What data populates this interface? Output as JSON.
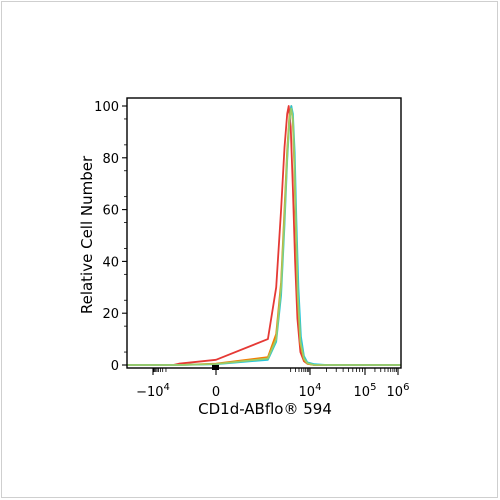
{
  "chart_data": {
    "type": "line",
    "xlabel": "CD1d-ABflo® 594",
    "ylabel": "Relative Cell Number",
    "ylim": [
      0,
      100
    ],
    "y_ticks": [
      "0",
      "20",
      "40",
      "60",
      "80",
      "100"
    ],
    "x_scale": "biexponential",
    "x_ticks": [
      {
        "value": -10000,
        "base": "−10",
        "exp": "4"
      },
      {
        "value": 0,
        "base": "0",
        "exp": ""
      },
      {
        "value": 10000,
        "base": "10",
        "exp": "4"
      },
      {
        "value": 100000,
        "base": "10",
        "exp": "5"
      },
      {
        "value": 1000000,
        "base": "10",
        "exp": "6"
      }
    ],
    "grid": false,
    "series": [
      {
        "color": "#e53935",
        "x": [
          -10000,
          -6000,
          -3000,
          -1500,
          -800,
          -400,
          0,
          300,
          600,
          900,
          1200,
          1500,
          1700,
          2000,
          2400,
          2900,
          3500,
          4500,
          6000,
          8000,
          12000,
          20000,
          40000
        ],
        "y": [
          0,
          0,
          0,
          0,
          0,
          0.5,
          2,
          10,
          30,
          60,
          84,
          97,
          100,
          92,
          68,
          40,
          18,
          5,
          1.5,
          0.5,
          0,
          0,
          0
        ]
      },
      {
        "color": "#f57c00",
        "x": [
          -10000,
          -6000,
          -3000,
          -1500,
          -800,
          -400,
          0,
          300,
          600,
          900,
          1200,
          1500,
          1800,
          2100,
          2400,
          2700,
          3100,
          3600,
          4500,
          6000,
          8000,
          12000,
          20000,
          40000
        ],
        "y": [
          0,
          0,
          0,
          0,
          0,
          0,
          0.5,
          3,
          12,
          32,
          60,
          83,
          96,
          100,
          94,
          78,
          52,
          26,
          8,
          2,
          0.5,
          0,
          0,
          0
        ]
      },
      {
        "color": "#26c6da",
        "x": [
          -10000,
          -6000,
          -3000,
          -1500,
          -800,
          -400,
          0,
          300,
          600,
          900,
          1200,
          1500,
          1800,
          2100,
          2400,
          2800,
          3200,
          3800,
          4700,
          6000,
          8000,
          12000,
          20000,
          40000
        ],
        "y": [
          0,
          0,
          0,
          0,
          0,
          0,
          0.3,
          2,
          9,
          27,
          54,
          79,
          94,
          100,
          97,
          82,
          57,
          30,
          11,
          3.5,
          1,
          0.3,
          0,
          0
        ]
      },
      {
        "color": "#9ccc65",
        "x": [
          -10000,
          -6000,
          -3000,
          -1500,
          -800,
          -400,
          0,
          300,
          600,
          900,
          1200,
          1500,
          1800,
          2100,
          2400,
          2700,
          3100,
          3600,
          4500,
          6000,
          8000,
          12000,
          20000,
          40000
        ],
        "y": [
          0,
          0,
          0,
          0,
          0,
          0,
          0.4,
          2.5,
          10,
          30,
          57,
          81,
          95,
          99,
          95,
          80,
          55,
          28,
          9,
          2.5,
          0.7,
          0,
          0,
          0
        ]
      }
    ]
  }
}
